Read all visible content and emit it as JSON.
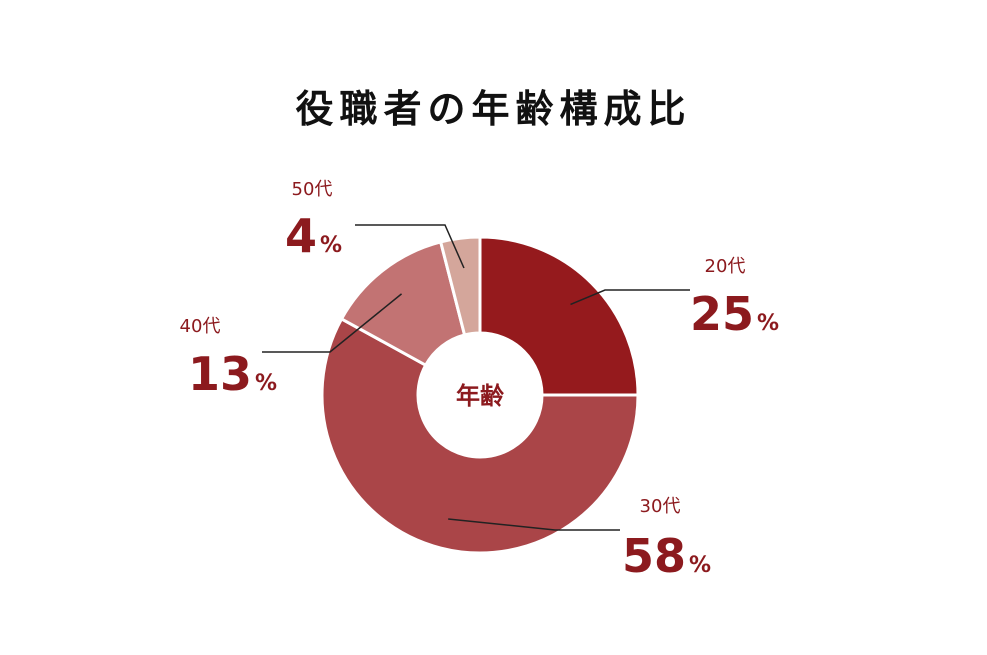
{
  "chart_data": {
    "type": "pie",
    "title": "役職者の年齢構成比",
    "center_label": "年齢",
    "categories": [
      "20代",
      "30代",
      "40代",
      "50代"
    ],
    "values": [
      25,
      58,
      13,
      4
    ],
    "unit": "%",
    "colors": [
      "#951a1d",
      "#aa4548",
      "#c27373",
      "#d4a69b"
    ]
  }
}
